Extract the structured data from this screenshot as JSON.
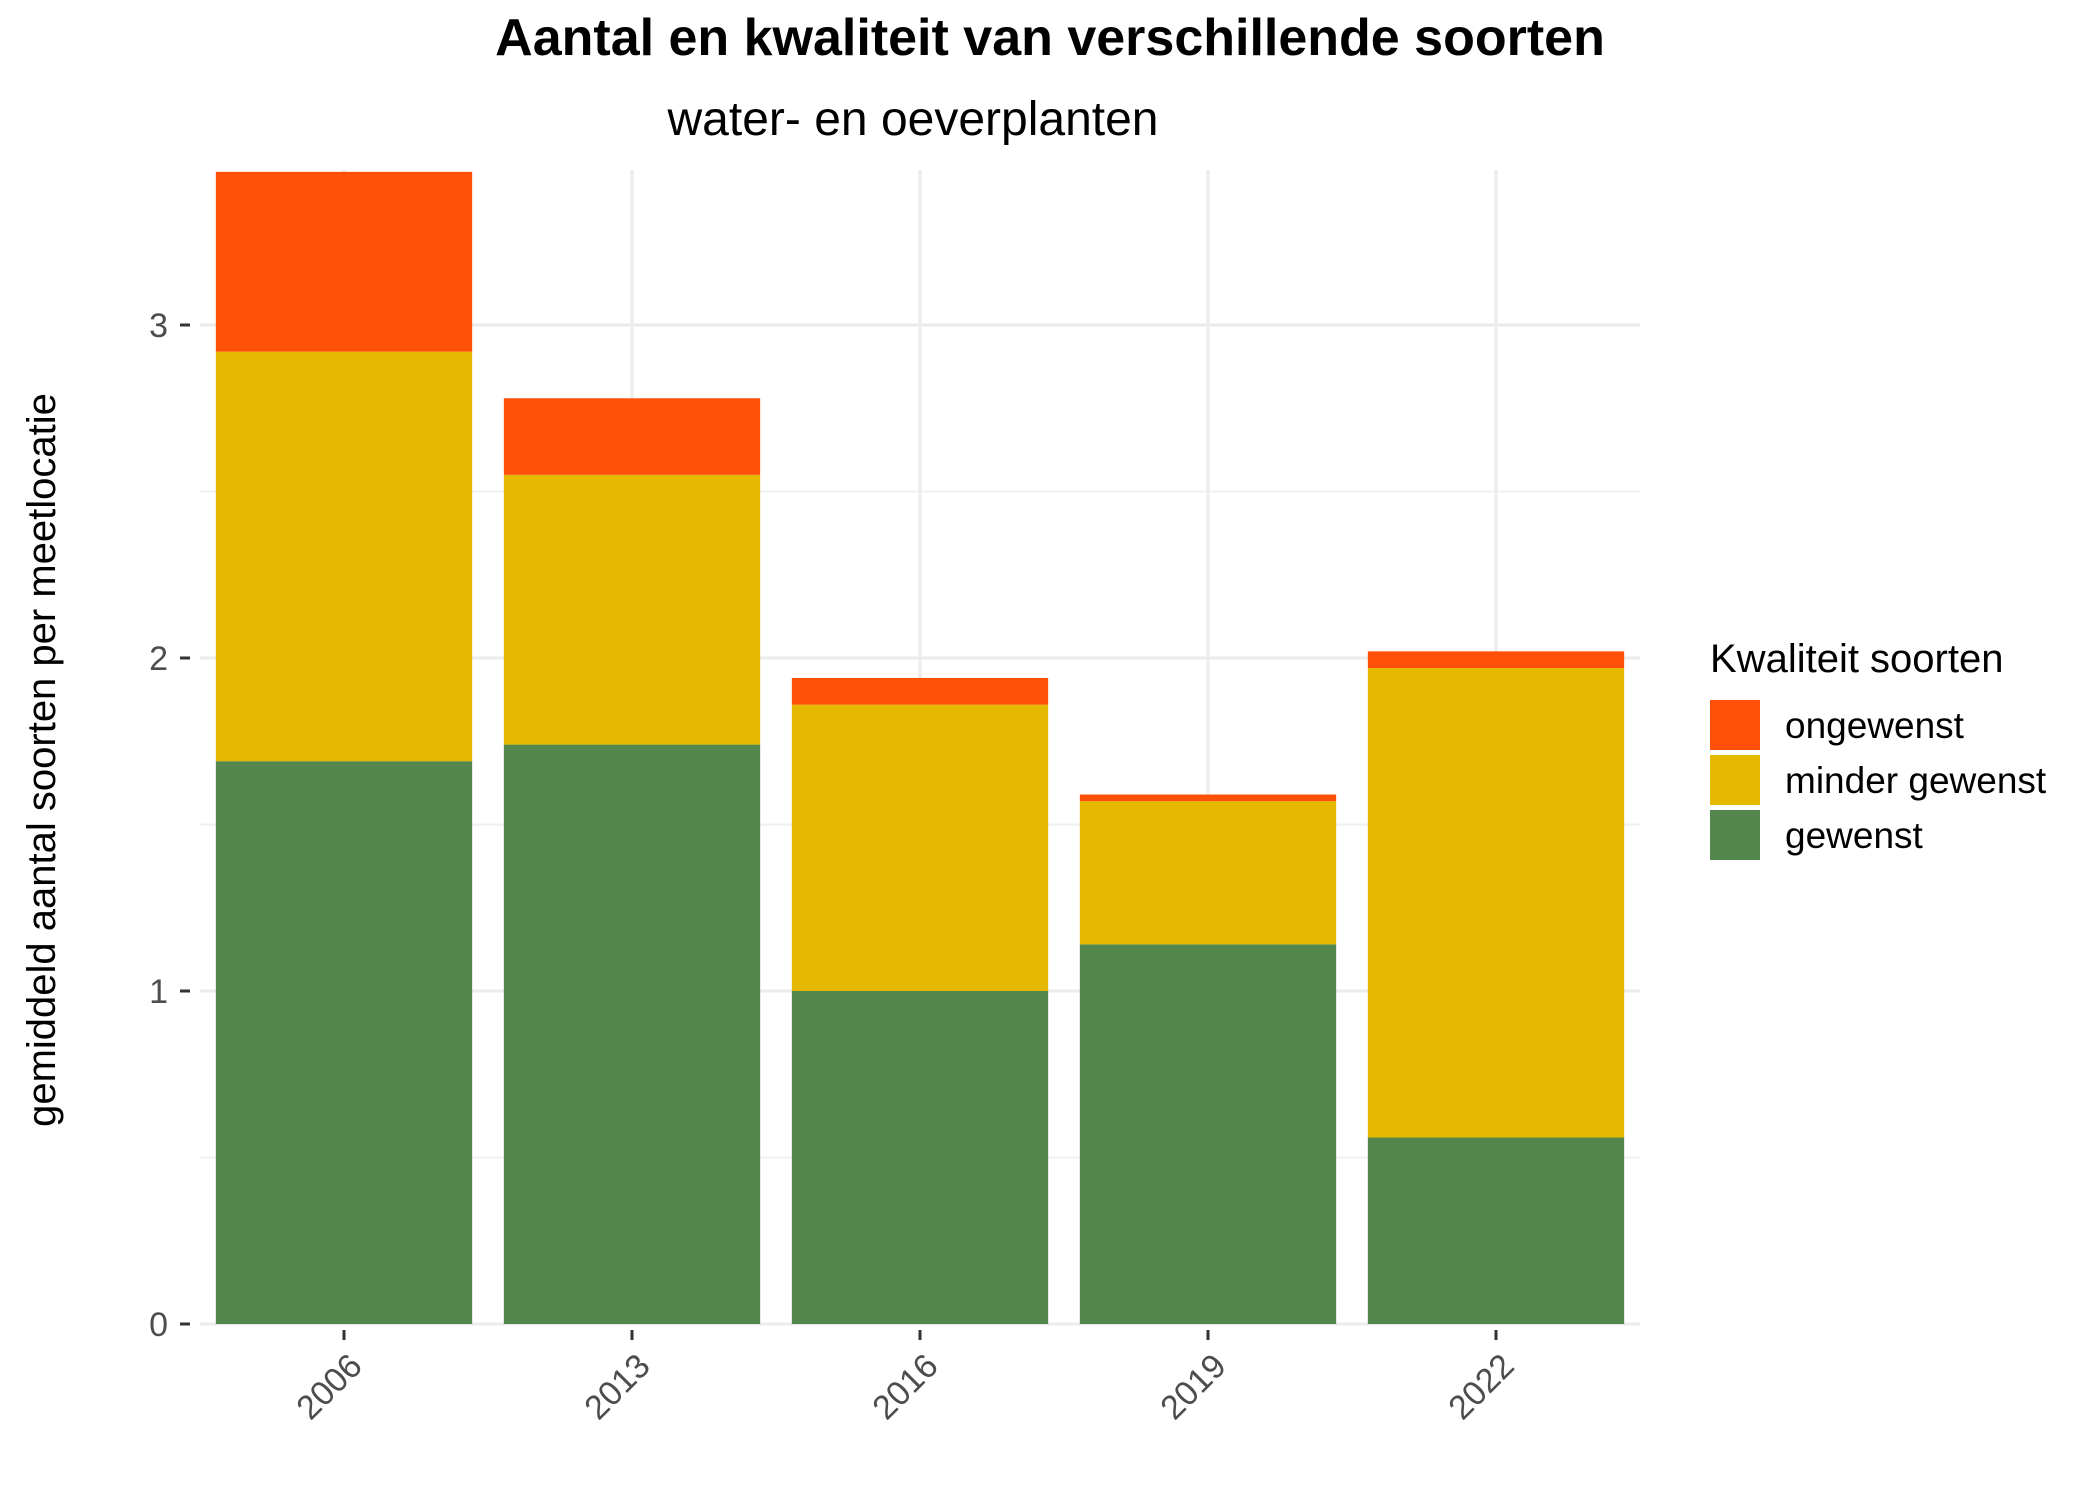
{
  "chart_data": {
    "type": "bar",
    "stacked": true,
    "title": "Aantal en kwaliteit van verschillende soorten",
    "subtitle": "water- en oeverplanten",
    "xlabel": "",
    "ylabel": "gemiddeld aantal soorten per meetlocatie",
    "categories": [
      "2006",
      "2013",
      "2016",
      "2019",
      "2022"
    ],
    "ylim": [
      0,
      3.47
    ],
    "yticks": [
      0,
      1,
      2,
      3
    ],
    "grid": true,
    "series": [
      {
        "name": "gewenst",
        "color": "#53874E",
        "values": [
          1.69,
          1.74,
          1.0,
          1.14,
          0.56
        ]
      },
      {
        "name": "minder gewenst",
        "color": "#E5B900",
        "values": [
          1.23,
          0.81,
          0.86,
          0.43,
          1.41
        ]
      },
      {
        "name": "ongewenst",
        "color": "#FF5009",
        "values": [
          0.54,
          0.23,
          0.08,
          0.02,
          0.05
        ]
      }
    ],
    "legend": {
      "title": "Kwaliteit soorten",
      "position": "right",
      "items": [
        "ongewenst",
        "minder gewenst",
        "gewenst"
      ]
    }
  }
}
